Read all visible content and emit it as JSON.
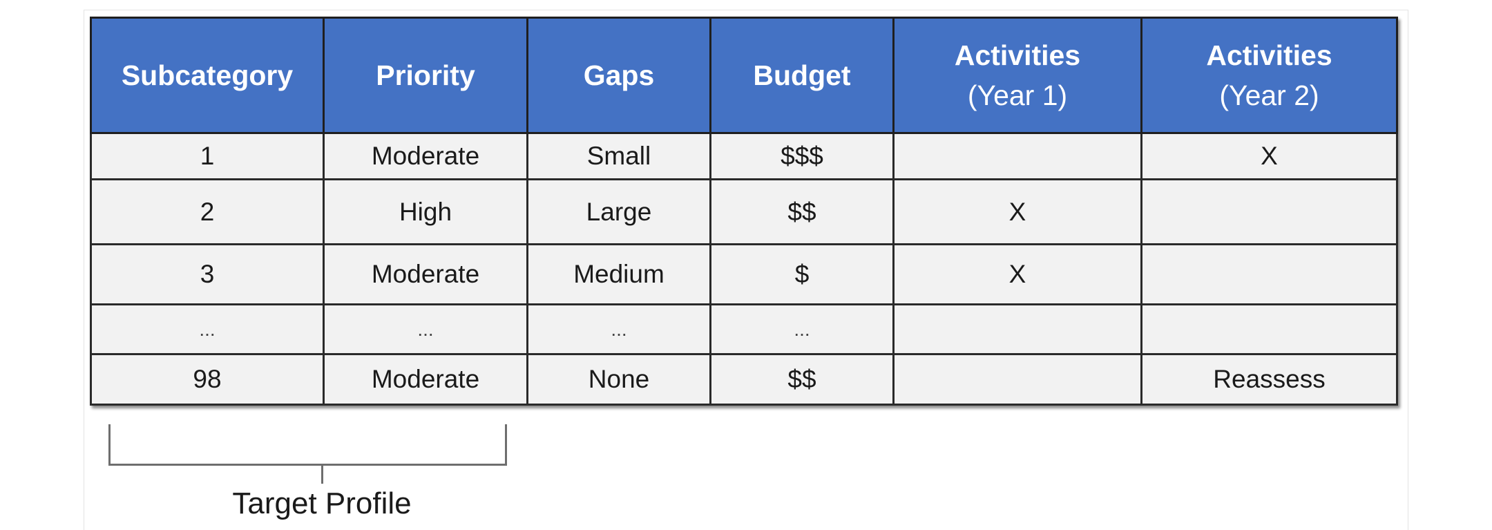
{
  "table": {
    "headers": [
      {
        "line1": "Subcategory",
        "line2": ""
      },
      {
        "line1": "Priority",
        "line2": ""
      },
      {
        "line1": "Gaps",
        "line2": ""
      },
      {
        "line1": "Budget",
        "line2": ""
      },
      {
        "line1": "Activities",
        "line2": "(Year 1)"
      },
      {
        "line1": "Activities",
        "line2": "(Year 2)"
      }
    ],
    "rows": [
      [
        "1",
        "Moderate",
        "Small",
        "$$$",
        "",
        "X"
      ],
      [
        "2",
        "High",
        "Large",
        "$$",
        "X",
        ""
      ],
      [
        "3",
        "Moderate",
        "Medium",
        "$",
        "X",
        ""
      ],
      [
        "...",
        "...",
        "...",
        "...",
        "",
        ""
      ],
      [
        "98",
        "Moderate",
        "None",
        "$$",
        "",
        "Reassess"
      ]
    ]
  },
  "bracket": {
    "label": "Target Profile"
  }
}
